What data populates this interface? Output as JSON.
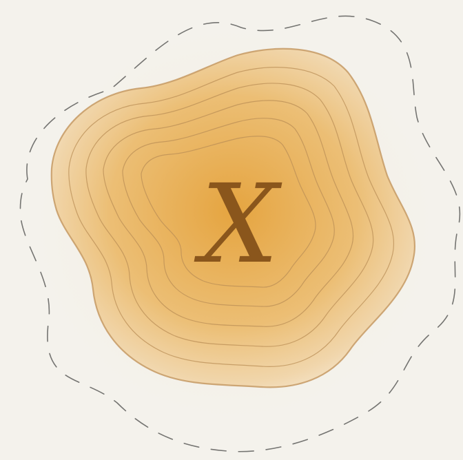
{
  "marker": {
    "label": "X"
  },
  "colors": {
    "background": "#f4f2ec",
    "blob_core": "#e5a33d",
    "blob_edge": "#efd4a6",
    "contour_stroke": "#b98d55",
    "label_color": "#8a561c",
    "dashed_outline": "#2f2f2f"
  }
}
